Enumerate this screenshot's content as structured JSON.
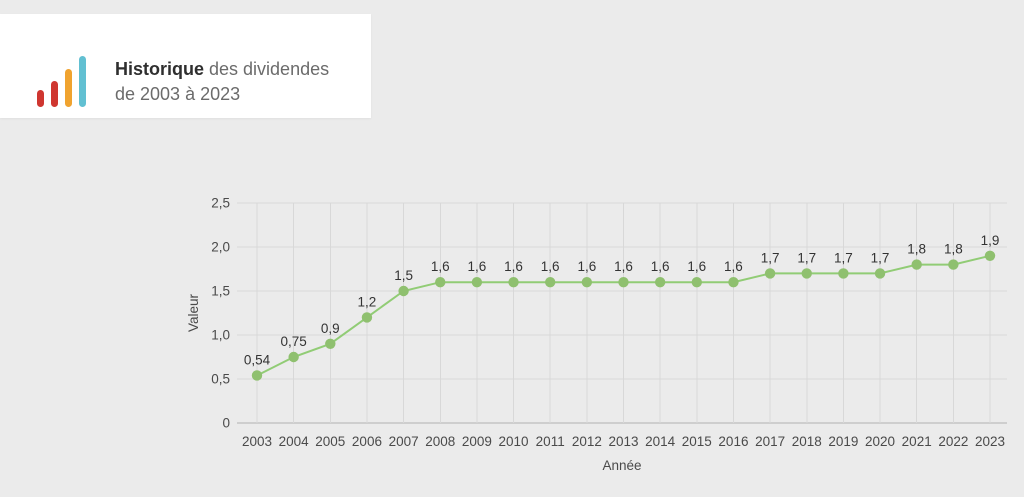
{
  "header": {
    "title_bold": "Historique",
    "title_rest": " des dividendes",
    "title_line2": "de 2003 à 2023",
    "icon": {
      "name": "bar-chart-icon",
      "bar_colors": [
        "#cf3630",
        "#cf3630",
        "#f0a32f",
        "#62c0d2"
      ]
    }
  },
  "chart_data": {
    "type": "line",
    "title": "Historique des dividendes de 2003 à 2023",
    "x": [
      2003,
      2004,
      2005,
      2006,
      2007,
      2008,
      2009,
      2010,
      2011,
      2012,
      2013,
      2014,
      2015,
      2016,
      2017,
      2018,
      2019,
      2020,
      2021,
      2022,
      2023
    ],
    "values": [
      0.54,
      0.75,
      0.9,
      1.2,
      1.5,
      1.6,
      1.6,
      1.6,
      1.6,
      1.6,
      1.6,
      1.6,
      1.6,
      1.6,
      1.7,
      1.7,
      1.7,
      1.7,
      1.8,
      1.8,
      1.9
    ],
    "point_labels": [
      "0,54",
      "0,75",
      "0,9",
      "1,2",
      "1,5",
      "1,6",
      "1,6",
      "1,6",
      "1,6",
      "1,6",
      "1,6",
      "1,6",
      "1,6",
      "1,6",
      "1,7",
      "1,7",
      "1,7",
      "1,7",
      "1,8",
      "1,8",
      "1,9"
    ],
    "xlabel": "Année",
    "ylabel": "Valeur",
    "ylim": [
      0,
      2.5
    ],
    "yticks": [
      {
        "value": 0,
        "label": "0"
      },
      {
        "value": 0.5,
        "label": "0,5"
      },
      {
        "value": 1.0,
        "label": "1,0"
      },
      {
        "value": 1.5,
        "label": "1,5"
      },
      {
        "value": 2.0,
        "label": "2,0"
      },
      {
        "value": 2.5,
        "label": "2,5"
      }
    ],
    "grid": true,
    "legend": "none",
    "colors": {
      "line": "#91cc75",
      "marker": "#8fc06f",
      "grid": "#d8d8d8",
      "axis": "#b0b0b0",
      "background": "#ebebeb"
    }
  }
}
